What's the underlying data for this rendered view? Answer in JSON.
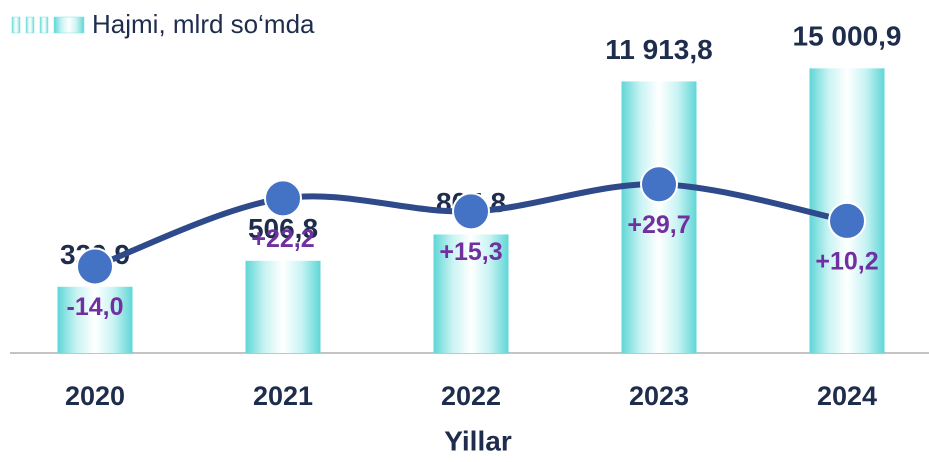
{
  "chart_data": {
    "type": "bar",
    "xlabel": "Yillar",
    "categories": [
      "2020",
      "2021",
      "2022",
      "2023",
      "2024"
    ],
    "log_scale": true,
    "ylim": [
      100,
      20000
    ],
    "y2lim": [
      -60,
      100
    ],
    "series": [
      {
        "name": "Hajmi, mlrd so‘mda",
        "type": "bar",
        "color": "#7fe0e0",
        "values": [
          320.9,
          506.8,
          805.8,
          11913.8,
          15000.9
        ],
        "value_labels": [
          "320,9",
          "506,8",
          "805,8",
          "11 913,8",
          "15 000,9"
        ]
      },
      {
        "type": "line",
        "axis": "y2",
        "color": "#2e4a8a",
        "marker_color": "#4472c4",
        "values": [
          -14.0,
          22.2,
          15.3,
          29.7,
          10.2
        ],
        "value_labels": [
          "-14,0",
          "+22,2",
          "+15,3",
          "+29,7",
          "+10,2"
        ]
      }
    ],
    "legend": "top-left"
  }
}
